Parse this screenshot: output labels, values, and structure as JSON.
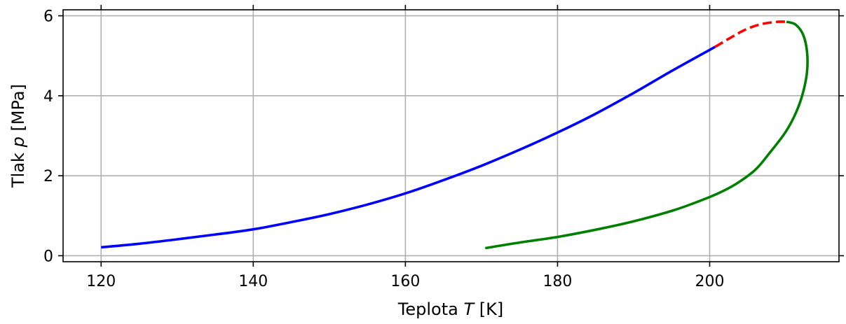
{
  "chart_data": {
    "type": "line",
    "xlabel": {
      "prefix": "Teplota ",
      "symbol": "T",
      "suffix": " [K]"
    },
    "ylabel": {
      "prefix": "Tlak ",
      "symbol": "p",
      "suffix": " [MPa]"
    },
    "xlim": [
      115,
      217
    ],
    "ylim": [
      -0.15,
      6.15
    ],
    "x_ticks": [
      120,
      140,
      160,
      180,
      200
    ],
    "y_ticks": [
      0,
      2,
      4,
      6
    ],
    "grid": true,
    "series": [
      {
        "color": "#0000ff",
        "style": "solid",
        "points": [
          [
            120,
            0.21
          ],
          [
            125,
            0.3
          ],
          [
            130,
            0.41
          ],
          [
            135,
            0.53
          ],
          [
            140,
            0.66
          ],
          [
            145,
            0.84
          ],
          [
            150,
            1.04
          ],
          [
            155,
            1.28
          ],
          [
            160,
            1.56
          ],
          [
            165,
            1.89
          ],
          [
            170,
            2.25
          ],
          [
            175,
            2.65
          ],
          [
            180,
            3.08
          ],
          [
            185,
            3.55
          ],
          [
            190,
            4.07
          ],
          [
            195,
            4.62
          ],
          [
            200.7,
            5.22
          ]
        ]
      },
      {
        "color": "#ff0000",
        "style": "dashed",
        "points": [
          [
            200.7,
            5.22
          ],
          [
            203,
            5.48
          ],
          [
            205,
            5.68
          ],
          [
            207,
            5.8
          ],
          [
            209,
            5.85
          ],
          [
            210.1,
            5.85
          ]
        ]
      },
      {
        "color": "#008000",
        "style": "solid",
        "points": [
          [
            210.1,
            5.85
          ],
          [
            211.3,
            5.78
          ],
          [
            212.3,
            5.52
          ],
          [
            212.8,
            5.1
          ],
          [
            212.8,
            4.6
          ],
          [
            212.3,
            4.1
          ],
          [
            211.4,
            3.6
          ],
          [
            210,
            3.1
          ],
          [
            208,
            2.6
          ],
          [
            206,
            2.15
          ],
          [
            203.5,
            1.8
          ],
          [
            201,
            1.55
          ],
          [
            198,
            1.32
          ],
          [
            195,
            1.12
          ],
          [
            190,
            0.86
          ],
          [
            185,
            0.65
          ],
          [
            180,
            0.47
          ],
          [
            175,
            0.33
          ],
          [
            170.5,
            0.19
          ]
        ]
      }
    ]
  }
}
